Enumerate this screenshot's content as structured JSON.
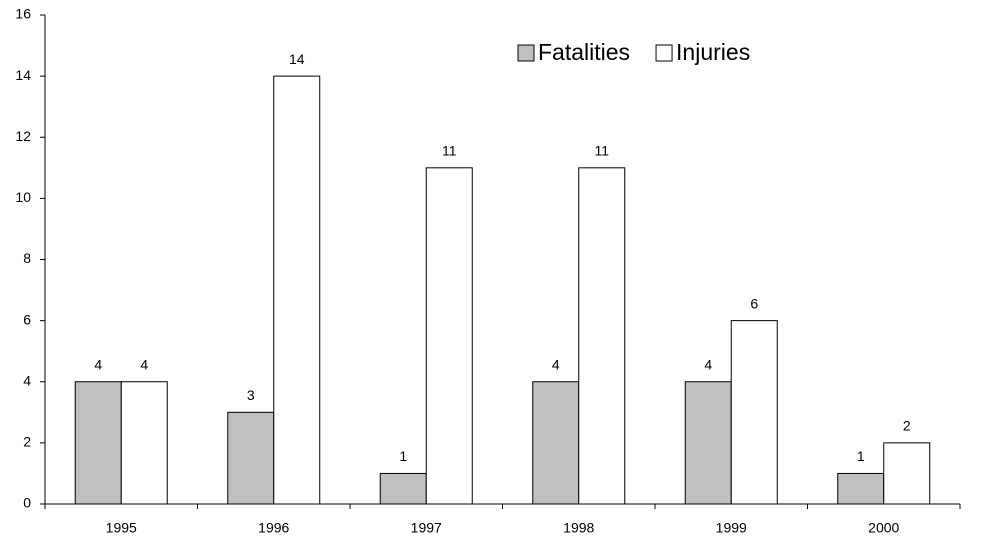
{
  "chart_data": {
    "type": "bar",
    "categories": [
      "1995",
      "1996",
      "1997",
      "1998",
      "1999",
      "2000"
    ],
    "series": [
      {
        "name": "Fatalities",
        "color": "#c0c0c0",
        "values": [
          4,
          3,
          1,
          4,
          4,
          1
        ]
      },
      {
        "name": "Injuries",
        "color": "#ffffff",
        "values": [
          4,
          14,
          11,
          11,
          6,
          2
        ]
      }
    ],
    "ylim": [
      0,
      16
    ],
    "yticks": [
      0,
      2,
      4,
      6,
      8,
      10,
      12,
      14,
      16
    ],
    "legend": "top-right",
    "grid": false
  }
}
